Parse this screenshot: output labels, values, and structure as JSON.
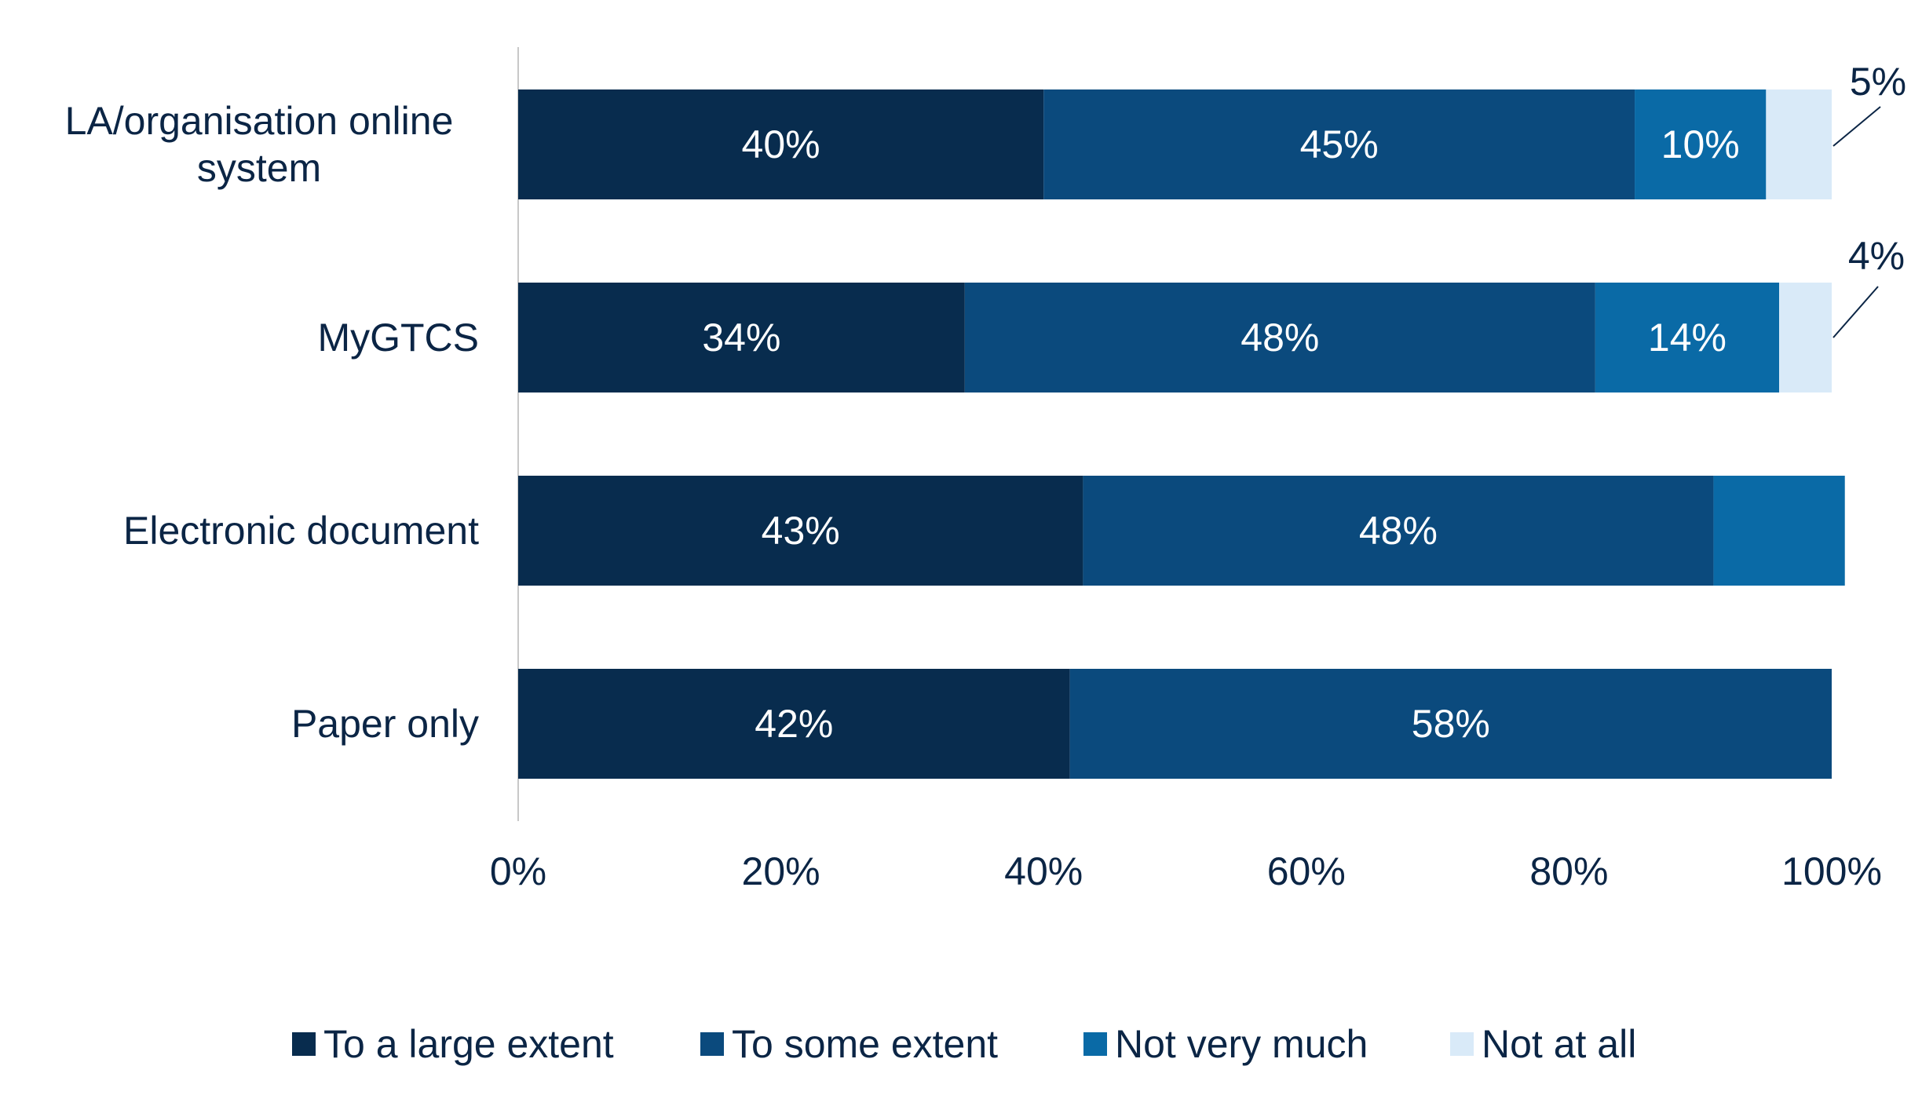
{
  "chart_data": {
    "type": "bar",
    "orientation": "horizontal",
    "stacked": true,
    "categories": [
      "LA/organisation online system",
      "MyGTCS",
      "Electronic document",
      "Paper only"
    ],
    "category_label_lines": [
      [
        "LA/organisation online",
        "system"
      ],
      [
        "MyGTCS"
      ],
      [
        "Electronic document"
      ],
      [
        "Paper only"
      ]
    ],
    "series": [
      {
        "name": "To a large extent",
        "color": "#082c4e",
        "values": [
          40,
          34,
          43,
          42
        ],
        "labels": [
          "40%",
          "34%",
          "43%",
          "42%"
        ]
      },
      {
        "name": "To some extent",
        "color": "#0b4a7d",
        "values": [
          45,
          48,
          48,
          58
        ],
        "labels": [
          "45%",
          "48%",
          "48%",
          "58%"
        ]
      },
      {
        "name": "Not very much",
        "color": "#0a6aa6",
        "values": [
          10,
          14,
          10,
          0
        ],
        "labels": [
          "10%",
          "14%",
          "",
          ""
        ]
      },
      {
        "name": "Not at all",
        "color": "#d9eaf8",
        "values": [
          5,
          4,
          0,
          0
        ],
        "labels": [
          "5%",
          "4%",
          "",
          ""
        ]
      }
    ],
    "xlim": [
      0,
      100
    ],
    "xticks": [
      "0%",
      "20%",
      "40%",
      "60%",
      "80%",
      "100%"
    ],
    "grid": false,
    "legend_position": "bottom",
    "title": "",
    "xlabel": "",
    "ylabel": ""
  }
}
